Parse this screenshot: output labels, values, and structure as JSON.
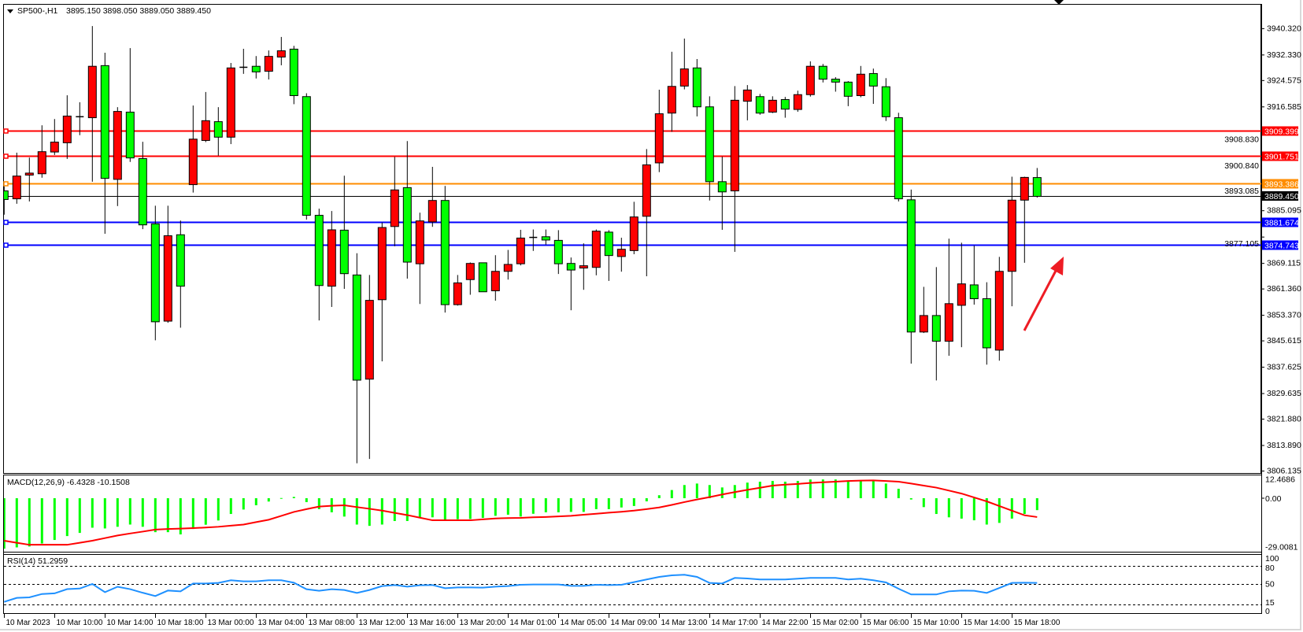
{
  "header": {
    "symbol": "SP500-,H1",
    "ohlc": "3895.150 3898.050 3889.050 3889.450"
  },
  "colors": {
    "bull": "#ff0000",
    "bear": "#00ff00",
    "outline": "#000000",
    "macd_signal": "#ff0000",
    "macd_hist": "#00ff00",
    "rsi_line": "#1e90ff",
    "resistance": "#ff0000",
    "pivot": "#ff8c00",
    "support": "#0000ff",
    "bid": "#000000",
    "arrow": "#ee1c24"
  },
  "chart_data": {
    "type": "candlestick",
    "symbol": "SP500-",
    "timeframe": "H1",
    "ylim": [
      3806.135,
      3940.32
    ],
    "y_ticks": [
      "3940.320",
      "3932.330",
      "3924.575",
      "3916.585",
      "3908.830",
      "3900.840",
      "3893.085",
      "3885.095",
      "3877.105",
      "3869.115",
      "3861.360",
      "3853.370",
      "3845.615",
      "3837.625",
      "3829.635",
      "3821.880",
      "3813.890",
      "3806.135"
    ],
    "x_tick_labels": [
      "10 Mar 2023",
      "10 Mar 10:00",
      "10 Mar 14:00",
      "10 Mar 18:00",
      "13 Mar 00:00",
      "13 Mar 04:00",
      "13 Mar 08:00",
      "13 Mar 12:00",
      "13 Mar 16:00",
      "13 Mar 20:00",
      "14 Mar 01:00",
      "14 Mar 05:00",
      "14 Mar 09:00",
      "14 Mar 13:00",
      "14 Mar 17:00",
      "14 Mar 22:00",
      "15 Mar 02:00",
      "15 Mar 06:00",
      "15 Mar 10:00",
      "15 Mar 14:00",
      "15 Mar 18:00"
    ],
    "x_tick_every_bars": 4,
    "candles_ohlc": [
      [
        3891.1,
        3892.5,
        3883.9,
        3888.5
      ],
      [
        3888.7,
        3902.7,
        3887.2,
        3895.6
      ],
      [
        3895.9,
        3901.2,
        3887.9,
        3896.5
      ],
      [
        3896.3,
        3911.0,
        3895.1,
        3903.0
      ],
      [
        3902.9,
        3912.9,
        3902.0,
        3905.9
      ],
      [
        3905.7,
        3920.1,
        3900.8,
        3913.8
      ],
      [
        3913.5,
        3918.0,
        3908.0,
        3913.6
      ],
      [
        3913.3,
        3941.1,
        3893.9,
        3928.9
      ],
      [
        3929.1,
        3933.0,
        3878.1,
        3894.9
      ],
      [
        3894.6,
        3916.5,
        3886.5,
        3915.2
      ],
      [
        3915.0,
        3934.4,
        3899.9,
        3901.1
      ],
      [
        3900.9,
        3906.0,
        3879.5,
        3880.8
      ],
      [
        3881.1,
        3886.6,
        3845.8,
        3851.4
      ],
      [
        3851.6,
        3886.6,
        3851.1,
        3877.5
      ],
      [
        3877.8,
        3882.1,
        3849.6,
        3862.2
      ],
      [
        3893.0,
        3917.0,
        3890.6,
        3906.8
      ],
      [
        3906.4,
        3921.1,
        3905.9,
        3912.4
      ],
      [
        3912.1,
        3916.5,
        3901.8,
        3907.4
      ],
      [
        3907.4,
        3929.9,
        3905.3,
        3928.4
      ],
      [
        3928.5,
        3934.2,
        3926.6,
        3928.6
      ],
      [
        3928.9,
        3932.0,
        3925.2,
        3927.2
      ],
      [
        3927.4,
        3933.7,
        3924.9,
        3931.9
      ],
      [
        3931.7,
        3937.8,
        3929.2,
        3933.6
      ],
      [
        3934.1,
        3935.1,
        3917.4,
        3920.0
      ],
      [
        3919.7,
        3920.7,
        3882.4,
        3883.7
      ],
      [
        3883.7,
        3885.7,
        3851.8,
        3862.4
      ],
      [
        3862.2,
        3885.0,
        3855.9,
        3879.3
      ],
      [
        3879.2,
        3895.7,
        3861.4,
        3866.0
      ],
      [
        3865.6,
        3872.2,
        3808.5,
        3833.7
      ],
      [
        3834.0,
        3865.6,
        3809.8,
        3857.9
      ],
      [
        3858.1,
        3881.5,
        3839.4,
        3880.0
      ],
      [
        3880.3,
        3901.4,
        3874.3,
        3891.4
      ],
      [
        3892.1,
        3906.2,
        3864.5,
        3869.5
      ],
      [
        3869.0,
        3884.5,
        3856.8,
        3882.0
      ],
      [
        3881.7,
        3898.4,
        3880.2,
        3888.2
      ],
      [
        3888.2,
        3892.6,
        3854.2,
        3856.6
      ],
      [
        3856.6,
        3865.6,
        3856.3,
        3863.2
      ],
      [
        3864.2,
        3869.4,
        3859.6,
        3869.1
      ],
      [
        3869.3,
        3869.3,
        3860.5,
        3860.5
      ],
      [
        3860.8,
        3871.6,
        3857.8,
        3866.7
      ],
      [
        3866.7,
        3873.2,
        3864.2,
        3868.8
      ],
      [
        3869.0,
        3879.3,
        3868.5,
        3876.8
      ],
      [
        3876.9,
        3879.4,
        3872.9,
        3877.0
      ],
      [
        3877.2,
        3879.4,
        3874.8,
        3876.2
      ],
      [
        3876.1,
        3879.2,
        3865.9,
        3869.0
      ],
      [
        3869.1,
        3870.9,
        3854.9,
        3867.1
      ],
      [
        3867.7,
        3875.2,
        3861.1,
        3868.4
      ],
      [
        3867.9,
        3879.4,
        3865.5,
        3878.9
      ],
      [
        3878.6,
        3879.2,
        3863.8,
        3871.5
      ],
      [
        3871.2,
        3876.9,
        3866.6,
        3873.4
      ],
      [
        3873.0,
        3887.8,
        3871.9,
        3883.2
      ],
      [
        3883.4,
        3903.8,
        3865.2,
        3899.0
      ],
      [
        3899.6,
        3921.8,
        3896.8,
        3914.5
      ],
      [
        3914.7,
        3933.3,
        3909.0,
        3922.8
      ],
      [
        3922.9,
        3937.3,
        3921.9,
        3928.1
      ],
      [
        3928.4,
        3931.1,
        3913.7,
        3916.6
      ],
      [
        3916.6,
        3919.8,
        3888.2,
        3893.9
      ],
      [
        3893.9,
        3901.5,
        3879.3,
        3890.8
      ],
      [
        3891.1,
        3922.9,
        3872.6,
        3918.6
      ],
      [
        3918.3,
        3923.2,
        3912.5,
        3921.7
      ],
      [
        3919.7,
        3920.5,
        3914.2,
        3914.7
      ],
      [
        3915.0,
        3919.8,
        3914.7,
        3918.6
      ],
      [
        3918.8,
        3919.6,
        3913.3,
        3915.9
      ],
      [
        3915.8,
        3921.5,
        3915.1,
        3920.3
      ],
      [
        3920.3,
        3930.4,
        3919.7,
        3928.9
      ],
      [
        3928.9,
        3929.6,
        3924.0,
        3925.0
      ],
      [
        3925.0,
        3925.6,
        3921.2,
        3924.1
      ],
      [
        3924.1,
        3924.4,
        3916.8,
        3919.8
      ],
      [
        3920.0,
        3929.0,
        3919.5,
        3926.5
      ],
      [
        3926.7,
        3928.2,
        3917.5,
        3922.9
      ],
      [
        3922.7,
        3925.3,
        3912.3,
        3913.6
      ],
      [
        3913.3,
        3914.8,
        3887.9,
        3888.7
      ],
      [
        3888.4,
        3891.5,
        3838.7,
        3848.3
      ],
      [
        3848.3,
        3862.0,
        3848.0,
        3853.3
      ],
      [
        3853.3,
        3868.0,
        3833.6,
        3845.5
      ],
      [
        3845.5,
        3876.6,
        3841.1,
        3856.9
      ],
      [
        3856.4,
        3875.4,
        3843.7,
        3862.9
      ],
      [
        3862.6,
        3874.5,
        3856.6,
        3858.4
      ],
      [
        3858.4,
        3863.4,
        3838.4,
        3843.5
      ],
      [
        3842.8,
        3871.1,
        3839.6,
        3866.7
      ],
      [
        3866.7,
        3895.4,
        3856.1,
        3888.3
      ],
      [
        3888.3,
        3895.4,
        3869.3,
        3895.2
      ],
      [
        3895.15,
        3898.05,
        3889.05,
        3889.45
      ]
    ],
    "horizontal_lines": [
      {
        "price": "3909.399",
        "role": "resistance"
      },
      {
        "price": "3901.751",
        "role": "resistance"
      },
      {
        "price": "3893.386",
        "role": "pivot"
      },
      {
        "price": "3881.674",
        "role": "support"
      },
      {
        "price": "3874.743",
        "role": "support"
      }
    ],
    "bid_line": "3889.450",
    "annotation": "red arrow pointing up-right"
  },
  "macd": {
    "title": "MACD(12,26,9) -6.4328 -10.1508",
    "ylim": [
      -29.0081,
      12.4686
    ],
    "ticks": [
      "12.4686",
      "0.00",
      "-29.0081"
    ],
    "histogram": [
      -27.2,
      -26.5,
      -26.0,
      -24.4,
      -22.5,
      -20.4,
      -18.7,
      -15.9,
      -16.3,
      -15.4,
      -14.2,
      -15.4,
      -18.3,
      -18.3,
      -19.5,
      -16.6,
      -14.3,
      -12.0,
      -8.5,
      -6.1,
      -3.8,
      -1.8,
      0.1,
      0.7,
      -2.1,
      -5.9,
      -7.6,
      -9.9,
      -14.2,
      -14.9,
      -14.2,
      -12.3,
      -12.3,
      -10.3,
      -10.3,
      -11.6,
      -11.3,
      -11.2,
      -10.6,
      -9.5,
      -8.9,
      -9.9,
      -8.4,
      -7.6,
      -7.6,
      -7.4,
      -7.4,
      -5.9,
      -5.9,
      -5.0,
      -4.2,
      -1.7,
      1.6,
      4.4,
      7.1,
      7.9,
      7.1,
      5.8,
      7.1,
      8.4,
      8.9,
      9.3,
      8.9,
      9.3,
      10.1,
      10.1,
      10.1,
      8.9,
      9.3,
      9.6,
      7.9,
      5.1,
      -0.7,
      -4.8,
      -8.5,
      -10.3,
      -11.0,
      -11.9,
      -14.2,
      -13.3,
      -11.0,
      -8.5,
      -6.4328
    ],
    "signal": [
      -22.9,
      -24.0,
      -25.1,
      -25.1,
      -25.1,
      -25.1,
      -24.0,
      -22.9,
      -21.5,
      -20.1,
      -19.0,
      -18.0,
      -16.9,
      -16.6,
      -16.4,
      -16.1,
      -15.8,
      -15.4,
      -14.8,
      -14.2,
      -12.9,
      -11.6,
      -9.5,
      -7.4,
      -5.9,
      -4.5,
      -4.1,
      -3.8,
      -4.8,
      -5.7,
      -6.7,
      -7.9,
      -9.1,
      -10.5,
      -11.9,
      -11.9,
      -11.9,
      -11.9,
      -11.4,
      -10.9,
      -10.7,
      -10.6,
      -10.3,
      -10.1,
      -9.8,
      -9.5,
      -8.9,
      -8.4,
      -7.8,
      -7.3,
      -6.7,
      -5.9,
      -5.0,
      -3.6,
      -2.1,
      -0.7,
      0.6,
      2.0,
      3.3,
      4.5,
      5.6,
      6.8,
      7.3,
      7.7,
      8.2,
      8.6,
      8.9,
      9.3,
      9.5,
      9.6,
      9.3,
      8.9,
      7.9,
      6.8,
      5.7,
      4.1,
      2.5,
      0.4,
      -1.7,
      -4.2,
      -6.7,
      -9.2,
      -10.1508
    ]
  },
  "rsi": {
    "title": "RSI(14) 51.2959",
    "ylim": [
      0,
      100
    ],
    "ticks": [
      "100",
      "80",
      "50",
      "15",
      "0"
    ],
    "levels": [
      80,
      50,
      15
    ],
    "values": [
      20,
      26.5,
      27.4,
      33,
      34,
      41,
      42,
      49.6,
      36,
      45,
      41,
      35,
      29.6,
      38.7,
      37.4,
      50.4,
      50.4,
      51.3,
      55.7,
      53.9,
      53.9,
      55.7,
      55.7,
      51.7,
      40.9,
      38.3,
      40.9,
      39.6,
      34.8,
      39.6,
      46.1,
      47.8,
      45.2,
      47.4,
      47.8,
      42.6,
      43.9,
      43.9,
      43.5,
      45.2,
      46.1,
      48.3,
      48.7,
      48.7,
      48.7,
      46.5,
      46.5,
      48.3,
      47.8,
      48.3,
      52.6,
      57,
      61.3,
      63.9,
      64.8,
      61.3,
      51.3,
      50.4,
      59.6,
      58.7,
      57,
      57,
      57,
      58.3,
      59.6,
      59.6,
      59.6,
      57,
      58.3,
      55.7,
      52.2,
      41.7,
      32.2,
      32.2,
      32.2,
      37.4,
      38.7,
      38.3,
      34.8,
      43,
      51.3,
      51.7,
      51.2959
    ]
  }
}
